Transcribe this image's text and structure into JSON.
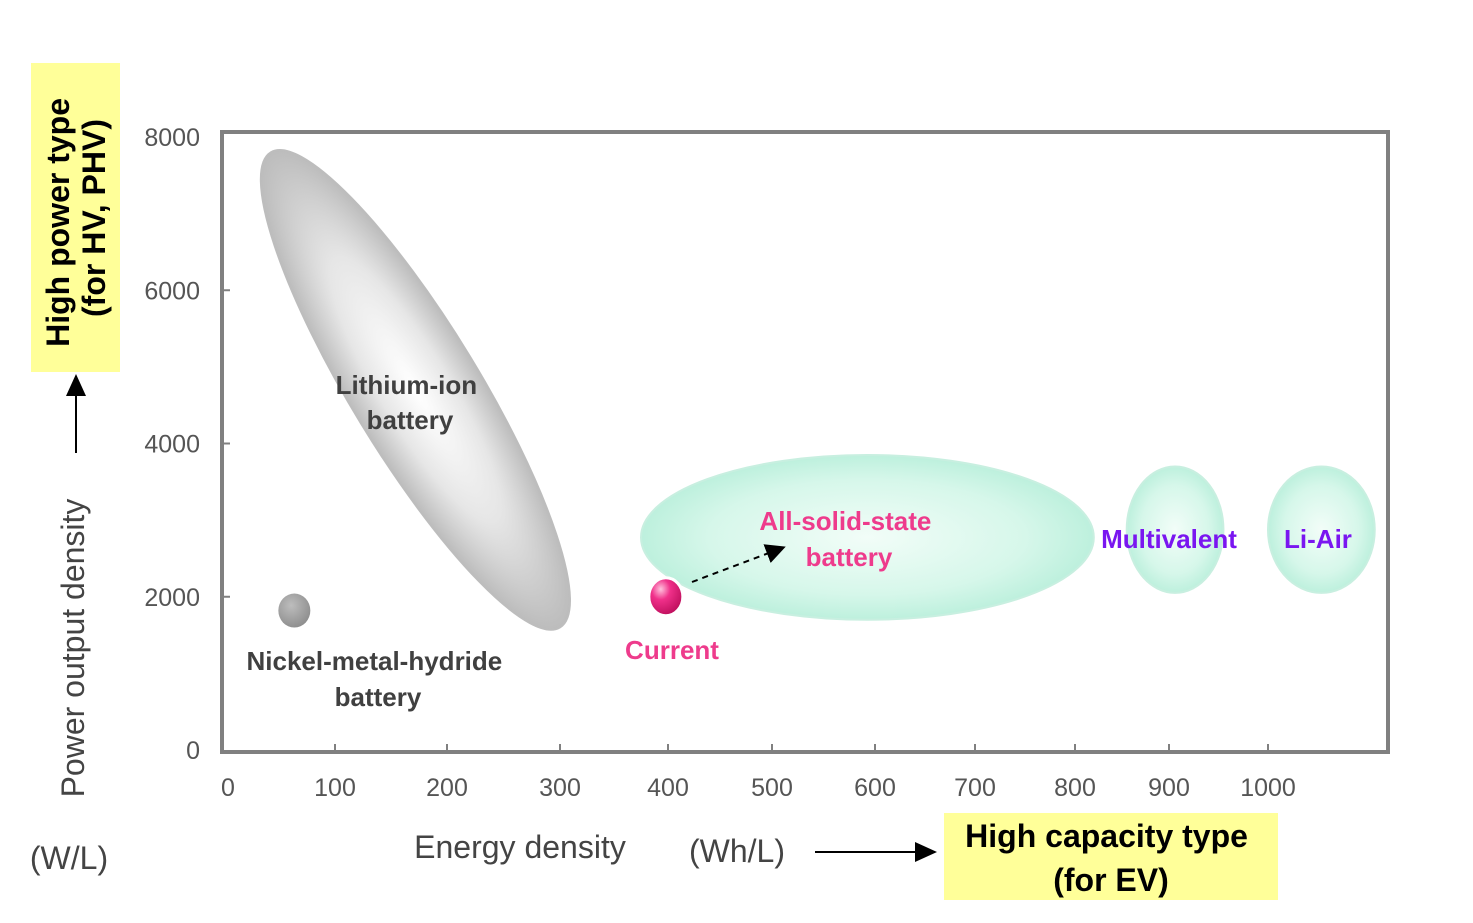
{
  "chart_data": {
    "type": "scatter",
    "title": "",
    "xlabel": "Energy density",
    "xunit": "(Wh/L)",
    "ylabel": "Power output density",
    "yunit": "(W/L)",
    "xlim": [
      0,
      1120
    ],
    "ylim": [
      0,
      8000
    ],
    "x_ticks": [
      0,
      100,
      200,
      300,
      400,
      500,
      600,
      700,
      800,
      900,
      1000
    ],
    "y_ticks": [
      0,
      2000,
      4000,
      6000,
      8000
    ],
    "grid": false,
    "regions": [
      {
        "key": "liion",
        "label_lines": [
          "Lithium-ion",
          "battery"
        ],
        "shape": "tilted ellipse",
        "x_range": [
          40,
          300
        ],
        "y_range": [
          1600,
          7800
        ],
        "color": "#c8c8c8",
        "label_color": "#404040"
      },
      {
        "key": "solid",
        "label_lines": [
          "All-solid-state",
          "battery"
        ],
        "shape": "ellipse",
        "x_range": [
          375,
          820
        ],
        "y_range": [
          1700,
          3850
        ],
        "color": "#cff5e6",
        "label_color": "#ee3b8c"
      },
      {
        "key": "multi",
        "label_lines": [
          "Multivalent"
        ],
        "shape": "ellipse",
        "x_range": [
          855,
          955
        ],
        "y_range": [
          2050,
          3700
        ],
        "color": "#cff5e6",
        "label_color": "#7a16f0"
      },
      {
        "key": "liair",
        "label_lines": [
          "Li-Air"
        ],
        "shape": "ellipse",
        "x_range": [
          1000,
          1105
        ],
        "y_range": [
          2050,
          3700
        ],
        "color": "#cff5e6",
        "label_color": "#7a16f0"
      }
    ],
    "points": [
      {
        "key": "nimh",
        "label_lines": [
          "Nickel-metal-hydride",
          "battery"
        ],
        "x": 62,
        "y": 1820,
        "color": "#9a9a9a",
        "label_color": "#404040"
      },
      {
        "key": "current",
        "label_lines": [
          "Current"
        ],
        "x": 398,
        "y": 2000,
        "color": "#e8227a",
        "label_color": "#ee3b8c"
      }
    ],
    "arrow": {
      "from": "Current",
      "to": "All-solid-state battery",
      "style": "dashed"
    },
    "callouts": {
      "y_axis": {
        "lines": [
          "High power type",
          "(for HV, PHV)"
        ],
        "background": "#ffff99"
      },
      "x_axis": {
        "lines": [
          "High capacity type",
          "(for EV)"
        ],
        "background": "#ffff99"
      }
    },
    "colors": {
      "frame": "#808080",
      "highlight": "#ffff99"
    }
  }
}
